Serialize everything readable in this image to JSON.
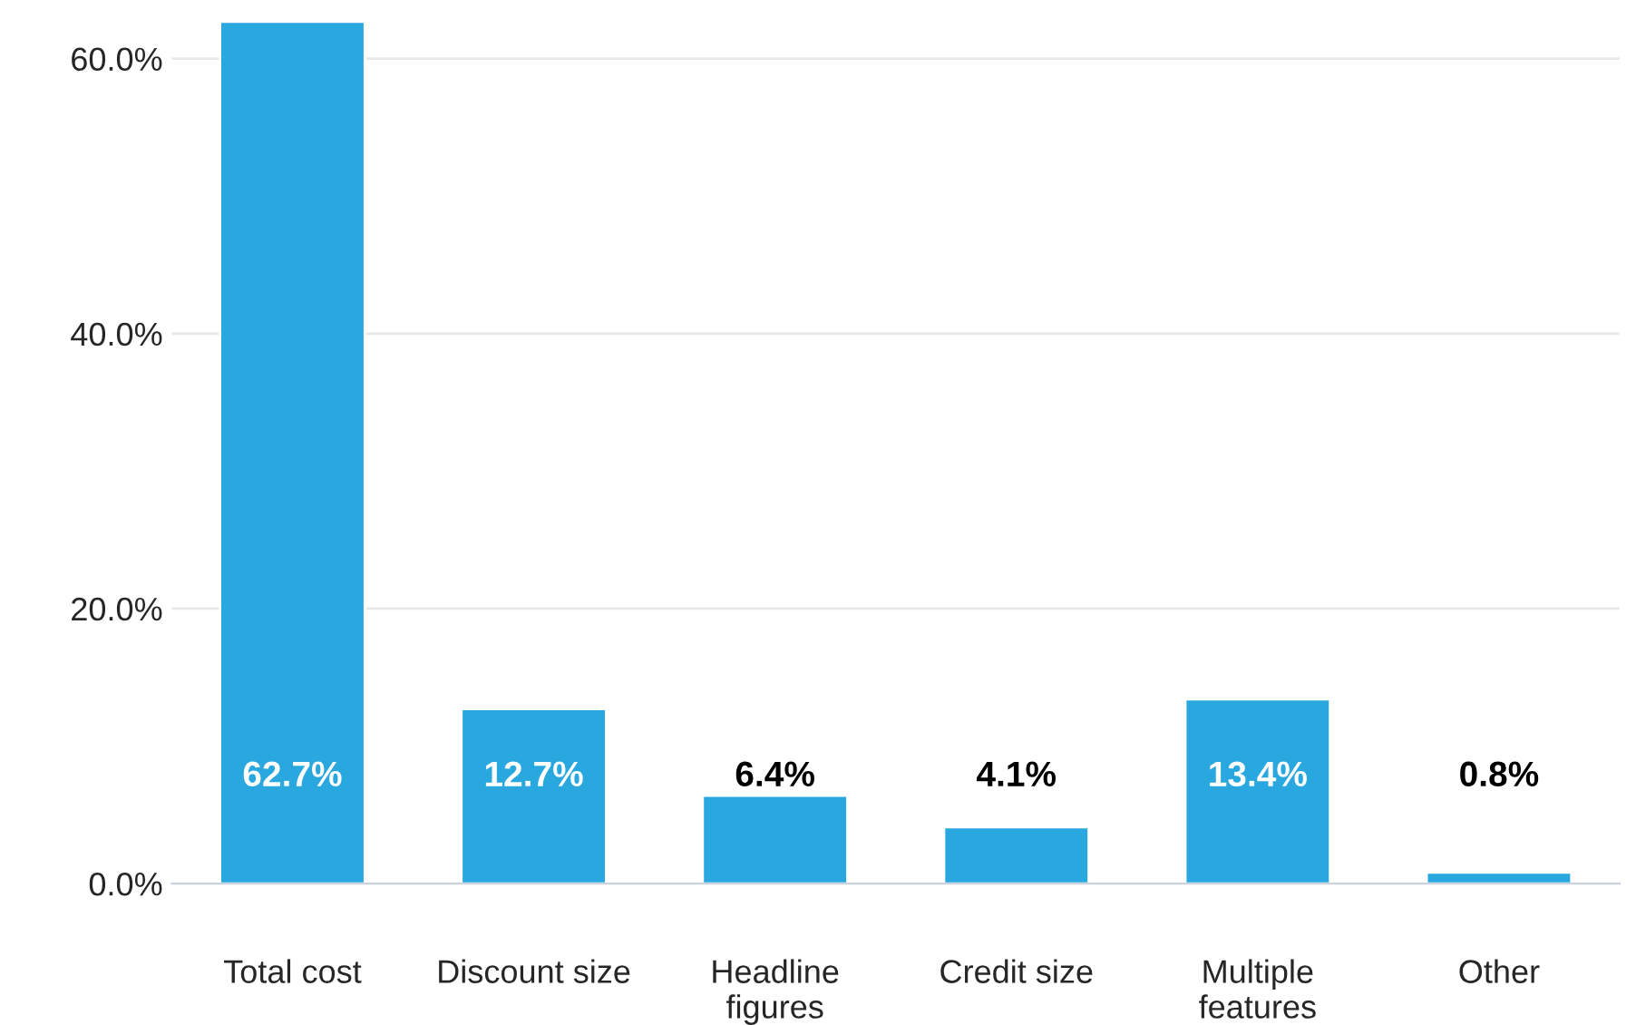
{
  "chart_data": {
    "type": "bar",
    "categories": [
      "Total cost",
      "Discount size",
      "Headline\nfigures",
      "Credit size",
      "Multiple\nfeatures",
      "Other"
    ],
    "values": [
      62.7,
      12.7,
      6.4,
      4.1,
      13.4,
      0.8
    ],
    "value_labels": [
      "62.7%",
      "12.7%",
      "6.4%",
      "4.1%",
      "13.4%",
      "0.8%"
    ],
    "color": "#29a8e0",
    "ylim": [
      0,
      63
    ],
    "yticks": [
      {
        "value": 0,
        "label": "0.0%"
      },
      {
        "value": 20,
        "label": "20.0%"
      },
      {
        "value": 40,
        "label": "40.0%"
      },
      {
        "value": 60,
        "label": "60.0%"
      }
    ],
    "grid": "y"
  }
}
